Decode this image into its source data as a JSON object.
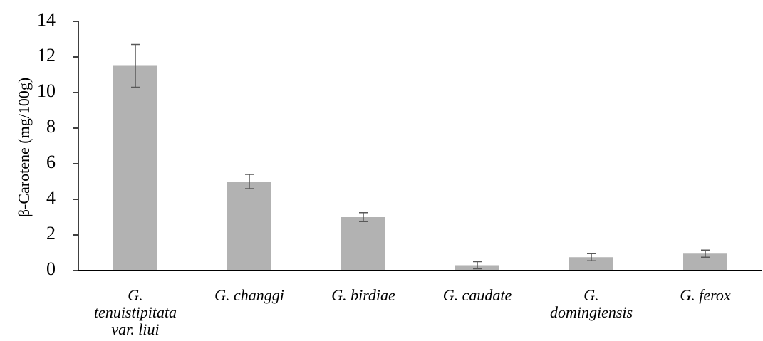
{
  "chart_data": {
    "type": "bar",
    "title": "",
    "xlabel": "",
    "ylabel": "β-Carotene (mg/100g)",
    "categories": [
      [
        "G.",
        "tenuistipitata",
        "var. liui"
      ],
      [
        "G. changgi"
      ],
      [
        "G. birdiae"
      ],
      [
        "G. caudate"
      ],
      [
        "G.",
        "domingiensis"
      ],
      [
        "G. ferox"
      ]
    ],
    "values": [
      11.5,
      5.0,
      3.0,
      0.3,
      0.75,
      0.95
    ],
    "errors": [
      1.2,
      0.4,
      0.25,
      0.2,
      0.2,
      0.2
    ],
    "ylim": [
      0,
      14
    ],
    "yticks": [
      0,
      2,
      4,
      6,
      8,
      10,
      12,
      14
    ],
    "grid": false,
    "legend": "none",
    "colors": {
      "bar": "#b2b2b2",
      "error_bar": "#595959",
      "axis": "#000000"
    }
  }
}
